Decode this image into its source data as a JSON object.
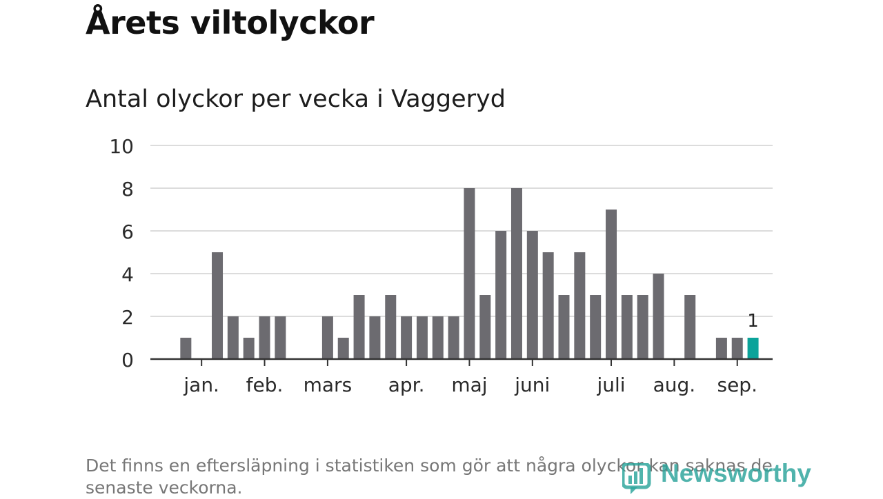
{
  "title": "Årets viltolyckor",
  "subtitle": "Antal olyckor per vecka i Vaggeryd",
  "footnote": "Det finns en eftersläpning i statistiken som gör att några olyckor kan saknas de senaste veckorna.",
  "logo_text": "Newsworthy",
  "chart_data": {
    "type": "bar",
    "x": [
      1,
      2,
      3,
      4,
      5,
      6,
      7,
      8,
      9,
      10,
      11,
      12,
      13,
      14,
      15,
      16,
      17,
      18,
      19,
      20,
      21,
      22,
      23,
      24,
      25,
      26,
      27,
      28,
      29,
      30,
      31,
      32,
      33,
      34,
      35,
      36,
      37,
      38,
      39
    ],
    "values": [
      0,
      1,
      0,
      5,
      2,
      1,
      2,
      2,
      0,
      0,
      2,
      1,
      3,
      2,
      3,
      2,
      2,
      2,
      2,
      8,
      3,
      6,
      8,
      6,
      5,
      3,
      5,
      3,
      7,
      3,
      3,
      4,
      0,
      3,
      0,
      1,
      1,
      1,
      null
    ],
    "highlight_index": 37,
    "highlight_label": "1",
    "ylim": [
      0,
      10
    ],
    "yticks": [
      "0",
      "2",
      "4",
      "6",
      "8",
      "10"
    ],
    "month_labels": [
      {
        "label": "jan.",
        "week": 3
      },
      {
        "label": "feb.",
        "week": 7
      },
      {
        "label": "mars",
        "week": 11
      },
      {
        "label": "apr.",
        "week": 16
      },
      {
        "label": "maj",
        "week": 20
      },
      {
        "label": "juni",
        "week": 24
      },
      {
        "label": "juli",
        "week": 29
      },
      {
        "label": "aug.",
        "week": 33
      },
      {
        "label": "sep.",
        "week": 37
      }
    ],
    "colors": {
      "bar": "#6c6b70",
      "highlight": "#0ba39a",
      "grid": "#dcdcdc",
      "axis": "#333333"
    },
    "grid": true
  }
}
